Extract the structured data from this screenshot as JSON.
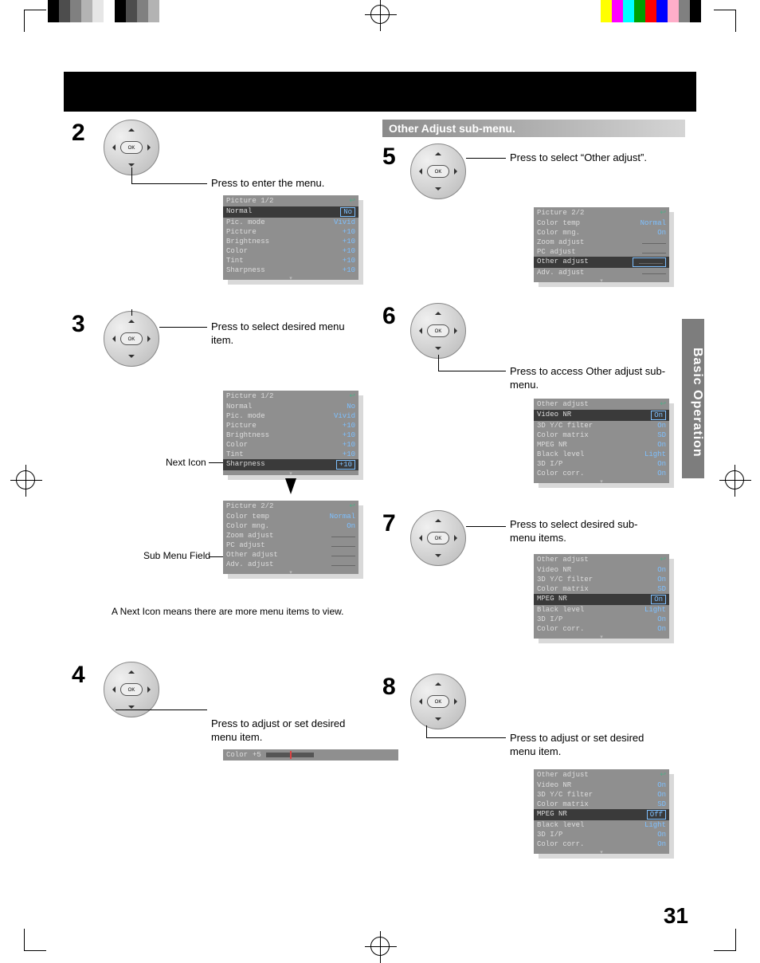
{
  "page_number": "31",
  "side_tab": "Basic Operation",
  "subheading": "Other Adjust sub-menu.",
  "reg_colors_left": [
    "#000000",
    "#4d4d4d",
    "#808080",
    "#b3b3b3",
    "#e6e6e6",
    "#ffffff",
    "#000000",
    "#4d4d4d",
    "#808080",
    "#b3b3b3"
  ],
  "reg_colors_right": [
    "#ffff00",
    "#ff00ff",
    "#00ffff",
    "#00a000",
    "#ff0000",
    "#0000ff",
    "#ffaec9",
    "#808080",
    "#000000",
    "#ffffff"
  ],
  "steps": {
    "s2": {
      "num": "2",
      "instr": "Press to enter the menu."
    },
    "s3": {
      "num": "3",
      "instr": "Press to select desired menu item."
    },
    "s4": {
      "num": "4",
      "instr": "Press to adjust or set desired menu item."
    },
    "s5": {
      "num": "5",
      "instr": "Press to select “Other adjust”."
    },
    "s6": {
      "num": "6",
      "instr": "Press to access Other adjust sub-menu."
    },
    "s7": {
      "num": "7",
      "instr": "Press to select desired sub-menu items."
    },
    "s8": {
      "num": "8",
      "instr": "Press to adjust or set desired menu item."
    }
  },
  "labels": {
    "next_icon": "Next Icon",
    "sub_menu_field": "Sub Menu Field",
    "next_note": "A Next Icon means there are more menu items to view."
  },
  "menus": {
    "pic1": {
      "title": "Picture 1/2",
      "rows": [
        {
          "l": "Normal",
          "r": "No",
          "hl": true
        },
        {
          "l": "Pic. mode",
          "r": "Vivid"
        },
        {
          "l": "Picture",
          "r": "+10"
        },
        {
          "l": "Brightness",
          "r": "+10"
        },
        {
          "l": "Color",
          "r": "+10"
        },
        {
          "l": "Tint",
          "r": "+10"
        },
        {
          "l": "Sharpness",
          "r": "+10"
        }
      ]
    },
    "pic1b": {
      "title": "Picture 1/2",
      "rows": [
        {
          "l": "Normal",
          "r": "No"
        },
        {
          "l": "Pic. mode",
          "r": "Vivid"
        },
        {
          "l": "Picture",
          "r": "+10"
        },
        {
          "l": "Brightness",
          "r": "+10"
        },
        {
          "l": "Color",
          "r": "+10"
        },
        {
          "l": "Tint",
          "r": "+10"
        },
        {
          "l": "Sharpness",
          "r": "+10",
          "hl": true
        }
      ]
    },
    "pic2": {
      "title": "Picture 2/2",
      "rows": [
        {
          "l": "Color temp",
          "r": "Normal"
        },
        {
          "l": "Color mng.",
          "r": "On"
        },
        {
          "l": "Zoom adjust",
          "r": "",
          "sub": true
        },
        {
          "l": "PC adjust",
          "r": "",
          "sub": true
        },
        {
          "l": "Other adjust",
          "r": "",
          "sub": true
        },
        {
          "l": "Adv. adjust",
          "r": "",
          "sub": true
        }
      ]
    },
    "pic2b": {
      "title": "Picture 2/2",
      "rows": [
        {
          "l": "Color temp",
          "r": "Normal"
        },
        {
          "l": "Color mng.",
          "r": "On"
        },
        {
          "l": "Zoom adjust",
          "r": "",
          "sub": true
        },
        {
          "l": "PC adjust",
          "r": "",
          "sub": true
        },
        {
          "l": "Other adjust",
          "r": "",
          "sub": true,
          "hl": true
        },
        {
          "l": "Adv. adjust",
          "r": "",
          "sub": true
        }
      ]
    },
    "other1": {
      "title": "Other adjust",
      "rows": [
        {
          "l": "Video NR",
          "r": "On",
          "hl": true
        },
        {
          "l": "3D Y/C filter",
          "r": "On"
        },
        {
          "l": "Color matrix",
          "r": "SD"
        },
        {
          "l": "MPEG NR",
          "r": "On"
        },
        {
          "l": "Black level",
          "r": "Light"
        },
        {
          "l": "3D I/P",
          "r": "On"
        },
        {
          "l": "Color corr.",
          "r": "On"
        }
      ]
    },
    "other2": {
      "title": "Other adjust",
      "rows": [
        {
          "l": "Video NR",
          "r": "On"
        },
        {
          "l": "3D Y/C filter",
          "r": "On"
        },
        {
          "l": "Color matrix",
          "r": "SD"
        },
        {
          "l": "MPEG NR",
          "r": "On",
          "hl": true
        },
        {
          "l": "Black level",
          "r": "Light"
        },
        {
          "l": "3D I/P",
          "r": "On"
        },
        {
          "l": "Color corr.",
          "r": "On"
        }
      ]
    },
    "other3": {
      "title": "Other adjust",
      "rows": [
        {
          "l": "Video NR",
          "r": "On"
        },
        {
          "l": "3D Y/C filter",
          "r": "On"
        },
        {
          "l": "Color matrix",
          "r": "SD"
        },
        {
          "l": "MPEG NR",
          "r": "Off",
          "hl": true
        },
        {
          "l": "Black level",
          "r": "Light"
        },
        {
          "l": "3D I/P",
          "r": "On"
        },
        {
          "l": "Color corr.",
          "r": "On"
        }
      ]
    }
  },
  "slider": {
    "label": "Color",
    "value": "+5"
  }
}
